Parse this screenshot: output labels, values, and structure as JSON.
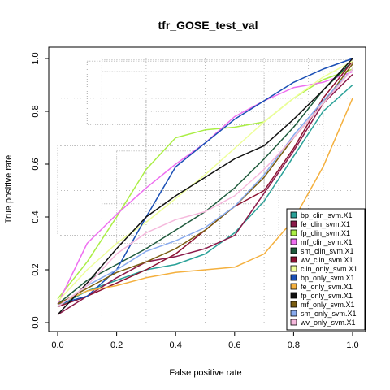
{
  "chart_data": {
    "type": "line",
    "title": "tfr_GOSE_test_val",
    "xlabel": "False positive rate",
    "ylabel": "True positive rate",
    "xlim": [
      0,
      1
    ],
    "ylim": [
      0,
      1
    ],
    "xticks": [
      "0.0",
      "0.2",
      "0.4",
      "0.6",
      "0.8",
      "1.0"
    ],
    "yticks": [
      "0.0",
      "0.2",
      "0.4",
      "0.6",
      "0.8",
      "1.0"
    ],
    "legend_position": "bottom-right",
    "grid": "dotted box grid",
    "series": [
      {
        "name": "bp_clin_svm.X1",
        "color": "#2aa198",
        "points": [
          [
            0,
            0.06
          ],
          [
            0.1,
            0.12
          ],
          [
            0.2,
            0.16
          ],
          [
            0.3,
            0.2
          ],
          [
            0.4,
            0.22
          ],
          [
            0.5,
            0.26
          ],
          [
            0.6,
            0.34
          ],
          [
            0.7,
            0.46
          ],
          [
            0.8,
            0.63
          ],
          [
            0.9,
            0.8
          ],
          [
            1,
            0.9
          ]
        ]
      },
      {
        "name": "fe_clin_svm.X1",
        "color": "#8b1a4a",
        "points": [
          [
            0,
            0.03
          ],
          [
            0.1,
            0.1
          ],
          [
            0.2,
            0.17
          ],
          [
            0.3,
            0.23
          ],
          [
            0.4,
            0.25
          ],
          [
            0.5,
            0.28
          ],
          [
            0.6,
            0.33
          ],
          [
            0.7,
            0.49
          ],
          [
            0.8,
            0.65
          ],
          [
            0.9,
            0.83
          ],
          [
            1,
            0.94
          ]
        ]
      },
      {
        "name": "fp_clin_svm.X1",
        "color": "#aaee44",
        "points": [
          [
            0,
            0.09
          ],
          [
            0.1,
            0.23
          ],
          [
            0.2,
            0.4
          ],
          [
            0.3,
            0.58
          ],
          [
            0.4,
            0.7
          ],
          [
            0.5,
            0.73
          ],
          [
            0.6,
            0.74
          ],
          [
            0.7,
            0.76
          ],
          [
            0.8,
            0.85
          ],
          [
            0.9,
            0.92
          ],
          [
            1,
            0.96
          ]
        ]
      },
      {
        "name": "mf_clin_svm.X1",
        "color": "#ee6ff0",
        "points": [
          [
            0,
            0.07
          ],
          [
            0.1,
            0.3
          ],
          [
            0.2,
            0.41
          ],
          [
            0.3,
            0.51
          ],
          [
            0.4,
            0.6
          ],
          [
            0.5,
            0.68
          ],
          [
            0.6,
            0.78
          ],
          [
            0.7,
            0.84
          ],
          [
            0.8,
            0.89
          ],
          [
            0.9,
            0.91
          ],
          [
            1,
            0.95
          ]
        ]
      },
      {
        "name": "sm_clin_svm.X1",
        "color": "#1e5a3c",
        "points": [
          [
            0,
            0.07
          ],
          [
            0.1,
            0.16
          ],
          [
            0.2,
            0.22
          ],
          [
            0.3,
            0.28
          ],
          [
            0.4,
            0.35
          ],
          [
            0.5,
            0.42
          ],
          [
            0.6,
            0.51
          ],
          [
            0.7,
            0.62
          ],
          [
            0.8,
            0.74
          ],
          [
            0.9,
            0.88
          ],
          [
            1,
            0.99
          ]
        ]
      },
      {
        "name": "wv_clin_svm.X1",
        "color": "#8b1030",
        "points": [
          [
            0,
            0.06
          ],
          [
            0.1,
            0.1
          ],
          [
            0.2,
            0.15
          ],
          [
            0.3,
            0.2
          ],
          [
            0.4,
            0.26
          ],
          [
            0.5,
            0.35
          ],
          [
            0.6,
            0.44
          ],
          [
            0.7,
            0.5
          ],
          [
            0.8,
            0.66
          ],
          [
            0.9,
            0.85
          ],
          [
            1,
            0.99
          ]
        ]
      },
      {
        "name": "clin_only_svm.X1",
        "color": "#eeff99",
        "points": [
          [
            0,
            0.08
          ],
          [
            0.1,
            0.2
          ],
          [
            0.2,
            0.3
          ],
          [
            0.3,
            0.38
          ],
          [
            0.4,
            0.47
          ],
          [
            0.5,
            0.56
          ],
          [
            0.6,
            0.66
          ],
          [
            0.7,
            0.76
          ],
          [
            0.8,
            0.85
          ],
          [
            0.9,
            0.93
          ],
          [
            1,
            0.99
          ]
        ]
      },
      {
        "name": "bp_only_svm.X1",
        "color": "#1a4fb5",
        "points": [
          [
            0,
            0.07
          ],
          [
            0.1,
            0.1
          ],
          [
            0.2,
            0.2
          ],
          [
            0.3,
            0.4
          ],
          [
            0.4,
            0.59
          ],
          [
            0.5,
            0.68
          ],
          [
            0.6,
            0.77
          ],
          [
            0.7,
            0.84
          ],
          [
            0.8,
            0.91
          ],
          [
            0.9,
            0.96
          ],
          [
            1,
            1.0
          ]
        ]
      },
      {
        "name": "fe_only_svm.X1",
        "color": "#f4b03e",
        "points": [
          [
            0,
            0.07
          ],
          [
            0.1,
            0.12
          ],
          [
            0.2,
            0.14
          ],
          [
            0.3,
            0.17
          ],
          [
            0.4,
            0.19
          ],
          [
            0.5,
            0.2
          ],
          [
            0.6,
            0.21
          ],
          [
            0.7,
            0.26
          ],
          [
            0.8,
            0.39
          ],
          [
            0.9,
            0.59
          ],
          [
            1,
            0.85
          ]
        ]
      },
      {
        "name": "fp_only_svm.X1",
        "color": "#111111",
        "points": [
          [
            0,
            0.03
          ],
          [
            0.1,
            0.15
          ],
          [
            0.2,
            0.28
          ],
          [
            0.3,
            0.4
          ],
          [
            0.4,
            0.48
          ],
          [
            0.5,
            0.55
          ],
          [
            0.6,
            0.62
          ],
          [
            0.7,
            0.67
          ],
          [
            0.8,
            0.77
          ],
          [
            0.9,
            0.88
          ],
          [
            1,
            1.0
          ]
        ]
      },
      {
        "name": "mf_only_svm.X1",
        "color": "#7a5c10",
        "points": [
          [
            0,
            0.07
          ],
          [
            0.1,
            0.13
          ],
          [
            0.2,
            0.19
          ],
          [
            0.3,
            0.23
          ],
          [
            0.4,
            0.28
          ],
          [
            0.5,
            0.35
          ],
          [
            0.6,
            0.44
          ],
          [
            0.7,
            0.55
          ],
          [
            0.8,
            0.7
          ],
          [
            0.9,
            0.83
          ],
          [
            1,
            0.98
          ]
        ]
      },
      {
        "name": "sm_only_svm.X1",
        "color": "#88aaee",
        "points": [
          [
            0,
            0.06
          ],
          [
            0.1,
            0.14
          ],
          [
            0.2,
            0.2
          ],
          [
            0.3,
            0.27
          ],
          [
            0.4,
            0.31
          ],
          [
            0.5,
            0.36
          ],
          [
            0.6,
            0.44
          ],
          [
            0.7,
            0.56
          ],
          [
            0.8,
            0.71
          ],
          [
            0.9,
            0.84
          ],
          [
            1,
            0.96
          ]
        ]
      },
      {
        "name": "wv_only_svm.X1",
        "color": "#f5b8dc",
        "points": [
          [
            0,
            0.06
          ],
          [
            0.1,
            0.14
          ],
          [
            0.2,
            0.26
          ],
          [
            0.3,
            0.34
          ],
          [
            0.4,
            0.39
          ],
          [
            0.5,
            0.42
          ],
          [
            0.6,
            0.48
          ],
          [
            0.7,
            0.58
          ],
          [
            0.8,
            0.7
          ],
          [
            0.9,
            0.83
          ],
          [
            1,
            0.96
          ]
        ]
      }
    ]
  }
}
